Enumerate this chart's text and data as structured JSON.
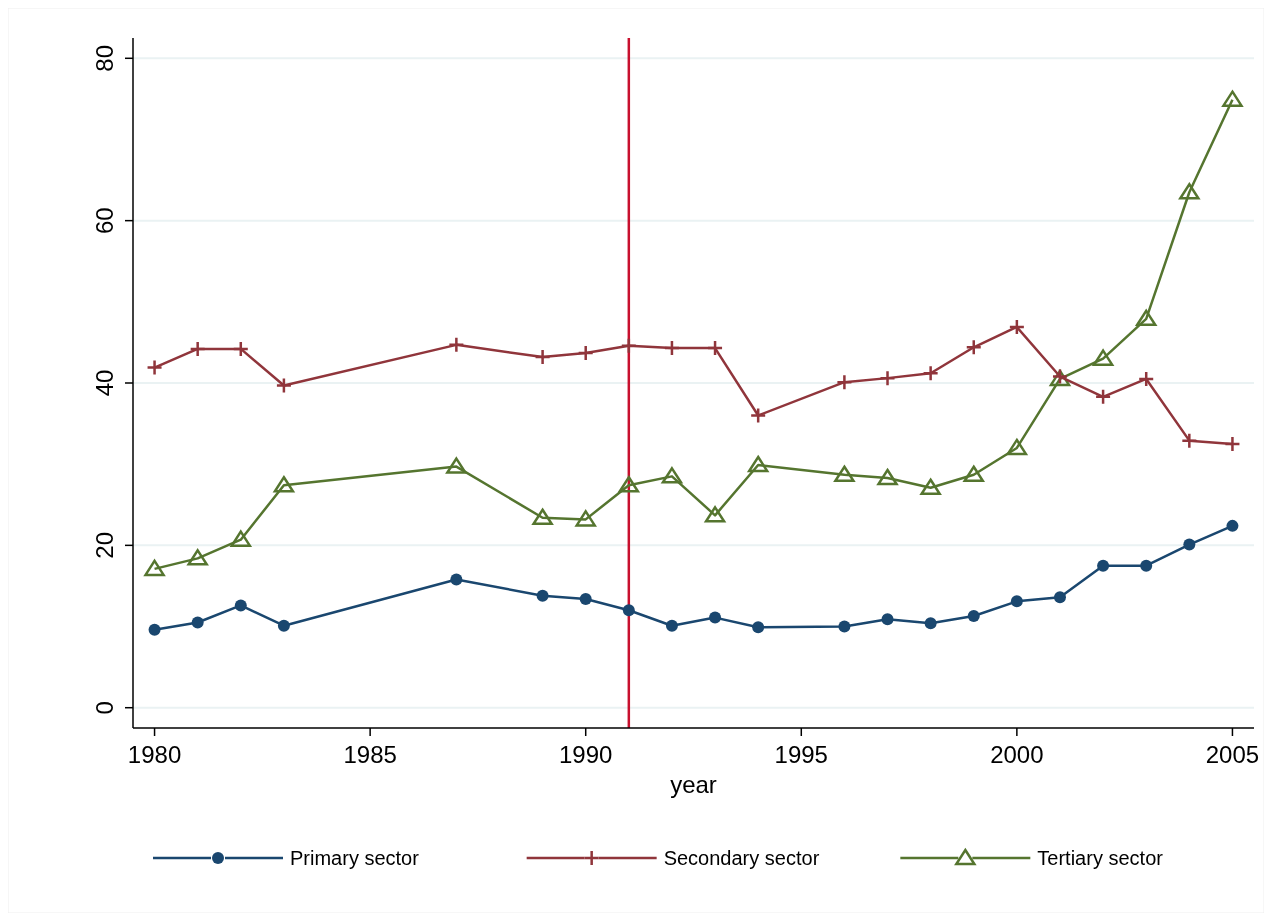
{
  "chart_data": {
    "type": "line",
    "xlabel": "year",
    "x": [
      1980,
      1981,
      1982,
      1983,
      1987,
      1989,
      1990,
      1991,
      1992,
      1993,
      1994,
      1996,
      1997,
      1998,
      1999,
      2000,
      2001,
      2002,
      2003,
      2004,
      2005
    ],
    "xlim": [
      1979.5,
      2005.5
    ],
    "xticks": [
      1980,
      1985,
      1990,
      1995,
      2000,
      2005
    ],
    "ylim": [
      -2.5,
      82.5
    ],
    "yticks": [
      0,
      20,
      40,
      60,
      80
    ],
    "grid": "y",
    "legend": "bottom",
    "ref_lines": [
      {
        "axis": "x",
        "value": 1991,
        "color": "#c8102e"
      }
    ],
    "series": [
      {
        "name": "Primary sector",
        "color": "#1a476f",
        "marker": "circle",
        "values": [
          9.6,
          10.5,
          12.6,
          10.1,
          15.8,
          13.8,
          13.4,
          12.0,
          10.1,
          11.1,
          9.9,
          10.0,
          10.9,
          10.4,
          11.3,
          13.1,
          13.6,
          17.5,
          17.5,
          20.1,
          22.4
        ]
      },
      {
        "name": "Secondary sector",
        "color": "#90353b",
        "marker": "cross",
        "values": [
          41.9,
          44.2,
          44.2,
          39.7,
          44.7,
          43.2,
          43.7,
          44.6,
          44.3,
          44.3,
          36.0,
          40.1,
          40.6,
          41.2,
          44.4,
          46.9,
          40.8,
          38.3,
          40.5,
          32.9,
          32.5
        ]
      },
      {
        "name": "Tertiary sector",
        "color": "#55752f",
        "marker": "triangle",
        "values": [
          17.1,
          18.4,
          20.7,
          27.4,
          29.7,
          23.4,
          23.2,
          27.4,
          28.5,
          23.7,
          29.9,
          28.7,
          28.3,
          27.1,
          28.7,
          32.0,
          40.5,
          43.0,
          47.9,
          63.5,
          74.9
        ]
      }
    ]
  }
}
